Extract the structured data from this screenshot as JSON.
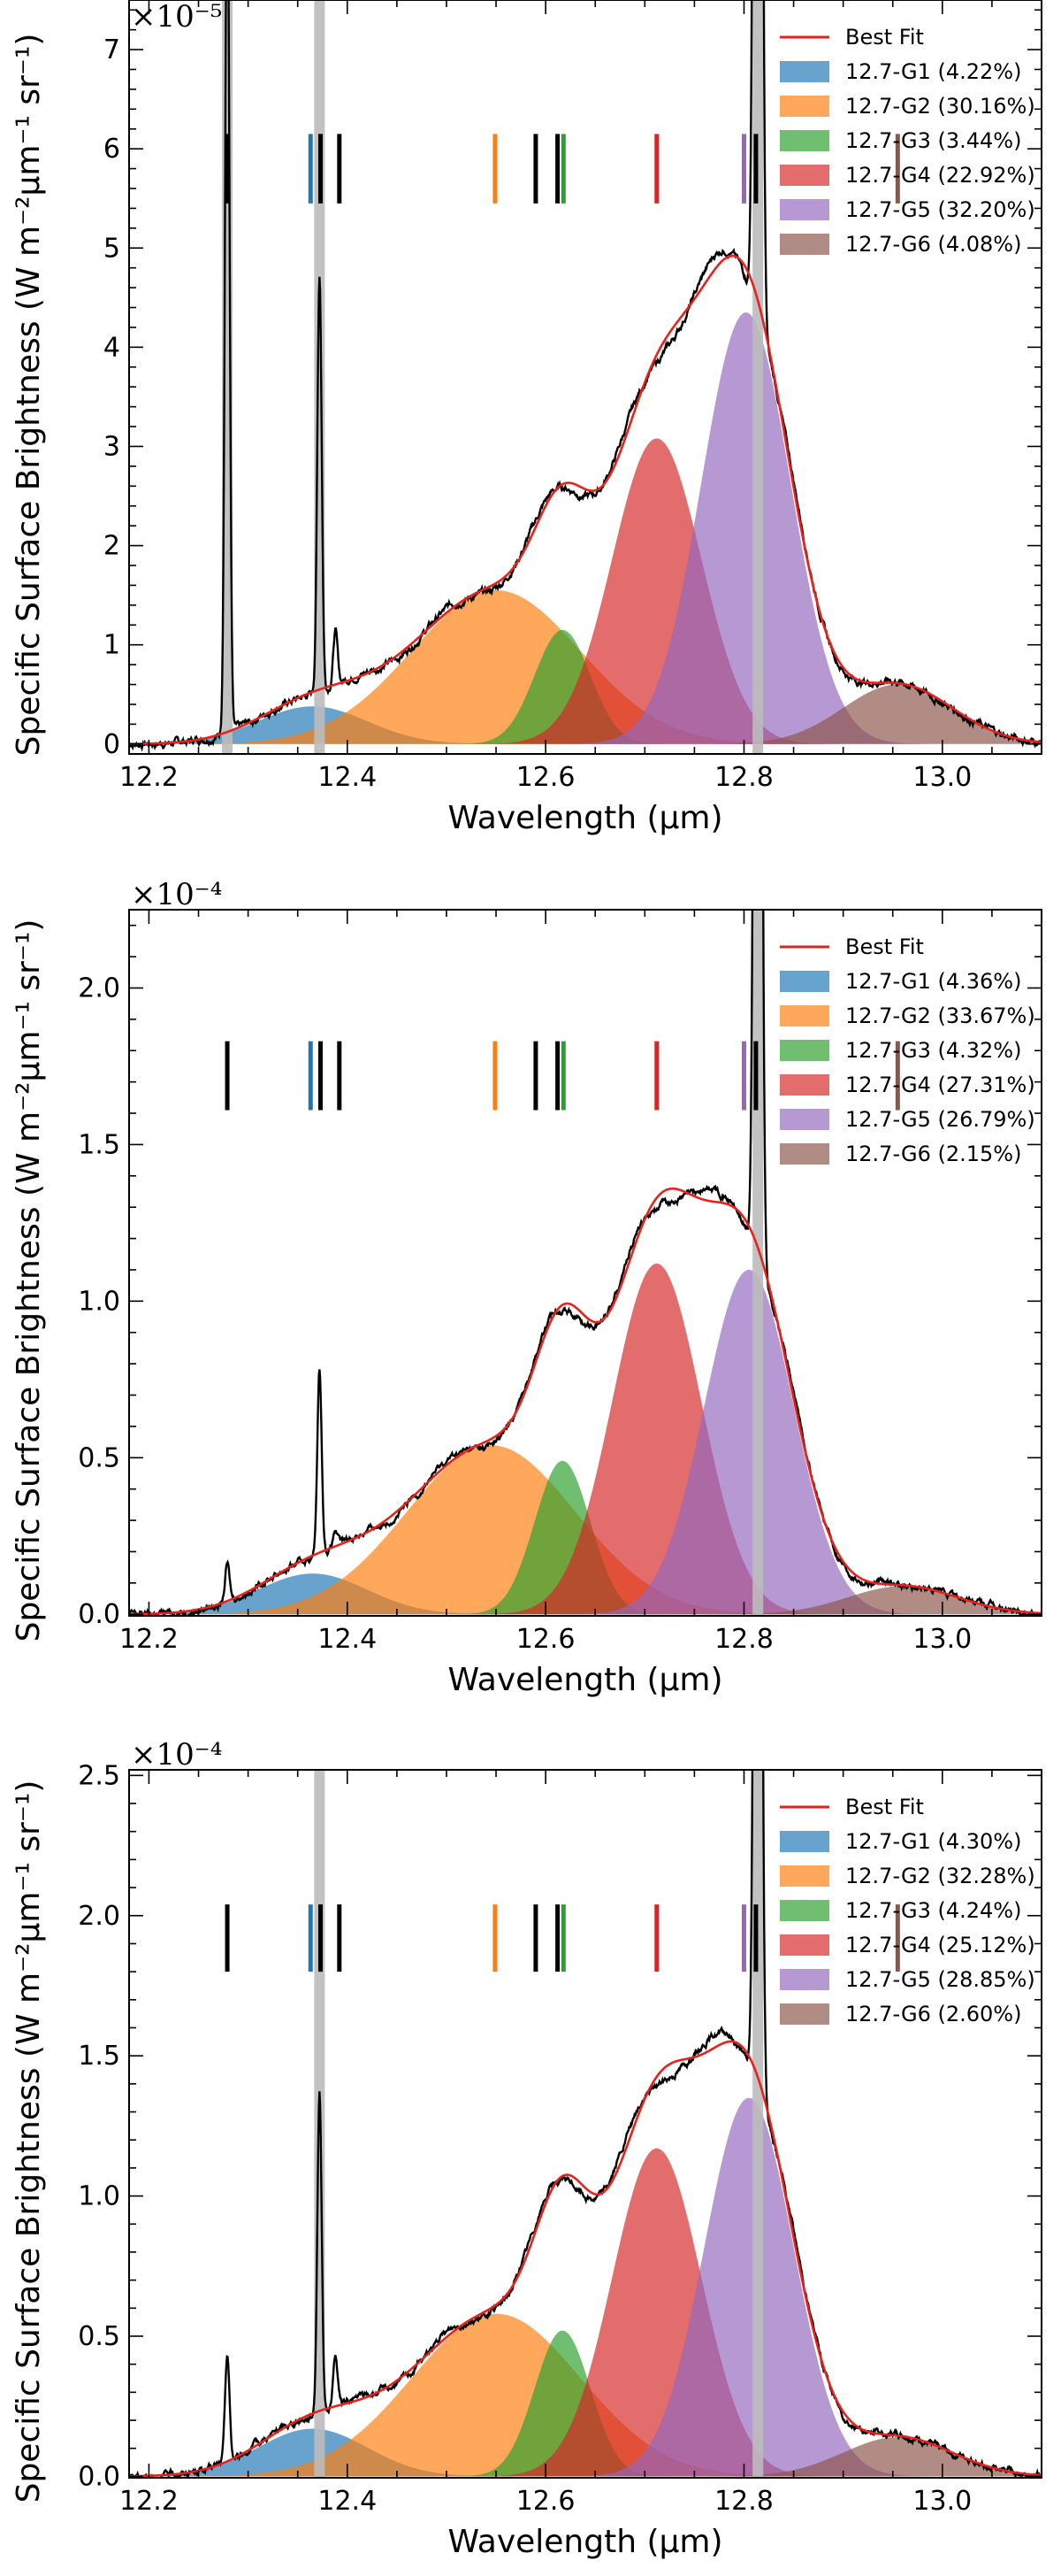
{
  "chart_data": [
    {
      "type": "area",
      "multiplier_label": "×10⁻⁵",
      "xlabel": "Wavelength (μm)",
      "ylabel": "Specific Surface Brightness (W m⁻²μm⁻¹ sr⁻¹)",
      "xlim": [
        12.18,
        13.1
      ],
      "ylim": [
        -0.1,
        7.5
      ],
      "x_ticks": [
        12.2,
        12.4,
        12.6,
        12.8,
        13.0
      ],
      "x_tick_labels": [
        "12.2",
        "12.4",
        "12.6",
        "12.8",
        "13.0"
      ],
      "y_ticks": [
        0,
        1,
        2,
        3,
        4,
        5,
        6,
        7
      ],
      "y_tick_labels": [
        "0",
        "1",
        "2",
        "3",
        "4",
        "5",
        "6",
        "7"
      ],
      "marker_level": 5.8,
      "marker_half": 0.35,
      "legend": {
        "best_fit": "Best Fit",
        "entries": [
          "12.7-G1 (4.22%)",
          "12.7-G2 (30.16%)",
          "12.7-G3 (3.44%)",
          "12.7-G4 (22.92%)",
          "12.7-G5 (32.20%)",
          "12.7-G6 (4.08%)"
        ]
      },
      "components": [
        {
          "name": "12.7-G1",
          "amp": 0.38,
          "center": 12.365,
          "sigma": 0.055
        },
        {
          "name": "12.7-G2",
          "amp": 1.55,
          "center": 12.55,
          "sigma": 0.085
        },
        {
          "name": "12.7-G3",
          "amp": 1.15,
          "center": 12.617,
          "sigma": 0.028
        },
        {
          "name": "12.7-G4",
          "amp": 3.08,
          "center": 12.712,
          "sigma": 0.045
        },
        {
          "name": "12.7-G5",
          "amp": 4.35,
          "center": 12.802,
          "sigma": 0.045
        },
        {
          "name": "12.7-G6",
          "amp": 0.6,
          "center": 12.955,
          "sigma": 0.055
        }
      ],
      "narrow_lines": [
        {
          "center": 12.279,
          "amp": 9.0,
          "sigma": 0.0022
        },
        {
          "center": 12.372,
          "amp": 4.2,
          "sigma": 0.0022
        },
        {
          "center": 12.388,
          "amp": 0.55,
          "sigma": 0.0022
        },
        {
          "center": 12.814,
          "amp": 25.0,
          "sigma": 0.003
        }
      ],
      "gray_lines": [
        12.279,
        12.372,
        12.814
      ]
    },
    {
      "type": "area",
      "multiplier_label": "×10⁻⁴",
      "xlabel": "Wavelength (μm)",
      "ylabel": "Specific Surface Brightness (W m⁻²μm⁻¹ sr⁻¹)",
      "xlim": [
        12.18,
        13.1
      ],
      "ylim": [
        -0.005,
        2.25
      ],
      "x_ticks": [
        12.2,
        12.4,
        12.6,
        12.8,
        13.0
      ],
      "x_tick_labels": [
        "12.2",
        "12.4",
        "12.6",
        "12.8",
        "13.0"
      ],
      "y_ticks": [
        0,
        0.5,
        1.0,
        1.5,
        2.0
      ],
      "y_tick_labels": [
        "0.0",
        "0.5",
        "1.0",
        "1.5",
        "2.0"
      ],
      "marker_level": 1.72,
      "marker_half": 0.11,
      "legend": {
        "best_fit": "Best Fit",
        "entries": [
          "12.7-G1 (4.36%)",
          "12.7-G2 (33.67%)",
          "12.7-G3 (4.32%)",
          "12.7-G4 (27.31%)",
          "12.7-G5 (26.79%)",
          "12.7-G6 (2.15%)"
        ]
      },
      "components": [
        {
          "name": "12.7-G1",
          "amp": 0.13,
          "center": 12.365,
          "sigma": 0.055
        },
        {
          "name": "12.7-G2",
          "amp": 0.54,
          "center": 12.545,
          "sigma": 0.085
        },
        {
          "name": "12.7-G3",
          "amp": 0.49,
          "center": 12.617,
          "sigma": 0.028
        },
        {
          "name": "12.7-G4",
          "amp": 1.12,
          "center": 12.712,
          "sigma": 0.045
        },
        {
          "name": "12.7-G5",
          "amp": 1.1,
          "center": 12.805,
          "sigma": 0.045
        },
        {
          "name": "12.7-G6",
          "amp": 0.09,
          "center": 12.96,
          "sigma": 0.055
        }
      ],
      "narrow_lines": [
        {
          "center": 12.279,
          "amp": 0.12,
          "sigma": 0.0022
        },
        {
          "center": 12.372,
          "amp": 0.59,
          "sigma": 0.0022
        },
        {
          "center": 12.388,
          "amp": 0.05,
          "sigma": 0.0022
        },
        {
          "center": 12.814,
          "amp": 6.0,
          "sigma": 0.003
        }
      ],
      "gray_lines": [
        12.814
      ]
    },
    {
      "type": "area",
      "multiplier_label": "×10⁻⁴",
      "xlabel": "Wavelength (μm)",
      "ylabel": "Specific Surface Brightness (W m⁻²μm⁻¹ sr⁻¹)",
      "xlim": [
        12.18,
        13.1
      ],
      "ylim": [
        -0.005,
        2.52
      ],
      "x_ticks": [
        12.2,
        12.4,
        12.6,
        12.8,
        13.0
      ],
      "x_tick_labels": [
        "12.2",
        "12.4",
        "12.6",
        "12.8",
        "13.0"
      ],
      "y_ticks": [
        0,
        0.5,
        1.0,
        1.5,
        2.0,
        2.5
      ],
      "y_tick_labels": [
        "0.0",
        "0.5",
        "1.0",
        "1.5",
        "2.0",
        "2.5"
      ],
      "marker_level": 1.92,
      "marker_half": 0.12,
      "legend": {
        "best_fit": "Best Fit",
        "entries": [
          "12.7-G1 (4.30%)",
          "12.7-G2 (32.28%)",
          "12.7-G3 (4.24%)",
          "12.7-G4 (25.12%)",
          "12.7-G5 (28.85%)",
          "12.7-G6 (2.60%)"
        ]
      },
      "components": [
        {
          "name": "12.7-G1",
          "amp": 0.17,
          "center": 12.365,
          "sigma": 0.055
        },
        {
          "name": "12.7-G2",
          "amp": 0.58,
          "center": 12.55,
          "sigma": 0.085
        },
        {
          "name": "12.7-G3",
          "amp": 0.52,
          "center": 12.617,
          "sigma": 0.028
        },
        {
          "name": "12.7-G4",
          "amp": 1.17,
          "center": 12.712,
          "sigma": 0.045
        },
        {
          "name": "12.7-G5",
          "amp": 1.35,
          "center": 12.805,
          "sigma": 0.045
        },
        {
          "name": "12.7-G6",
          "amp": 0.14,
          "center": 12.955,
          "sigma": 0.055
        }
      ],
      "narrow_lines": [
        {
          "center": 12.279,
          "amp": 0.38,
          "sigma": 0.0022
        },
        {
          "center": 12.372,
          "amp": 1.15,
          "sigma": 0.0022
        },
        {
          "center": 12.388,
          "amp": 0.18,
          "sigma": 0.0022
        },
        {
          "center": 12.814,
          "amp": 6.0,
          "sigma": 0.003
        }
      ],
      "gray_lines": [
        12.372,
        12.814
      ]
    }
  ],
  "marker_positions": [
    {
      "x": 12.279,
      "color": "#000000"
    },
    {
      "x": 12.363,
      "color": "#1f77b4"
    },
    {
      "x": 12.373,
      "color": "#000000"
    },
    {
      "x": 12.392,
      "color": "#000000"
    },
    {
      "x": 12.549,
      "color": "#ff7f0e"
    },
    {
      "x": 12.59,
      "color": "#000000"
    },
    {
      "x": 12.612,
      "color": "#000000"
    },
    {
      "x": 12.618,
      "color": "#2ca02c"
    },
    {
      "x": 12.712,
      "color": "#d62728"
    },
    {
      "x": 12.8,
      "color": "#9467bd"
    },
    {
      "x": 12.812,
      "color": "#000000"
    },
    {
      "x": 12.955,
      "color": "#8c564b"
    }
  ],
  "colors": {
    "components": [
      "#1f77b4",
      "#ff7f0e",
      "#2ca02c",
      "#d62728",
      "#9467bd",
      "#8c564b"
    ],
    "fit": "#e8221b",
    "data": "#000000",
    "gray": "#bbbbbb"
  }
}
